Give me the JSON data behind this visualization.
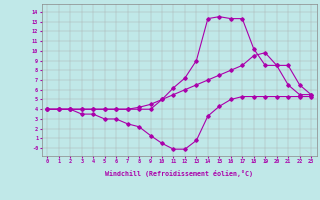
{
  "xlabel": "Windchill (Refroidissement éolien,°C)",
  "bg_color": "#c0e8e8",
  "line_color": "#aa00aa",
  "grid_color": "#aaaaaa",
  "xticks": [
    0,
    1,
    2,
    3,
    4,
    5,
    6,
    7,
    8,
    9,
    10,
    11,
    12,
    13,
    14,
    15,
    16,
    17,
    18,
    19,
    20,
    21,
    22,
    23
  ],
  "yticks": [
    0,
    1,
    2,
    3,
    4,
    5,
    6,
    7,
    8,
    9,
    10,
    11,
    12,
    13,
    14
  ],
  "line_top_x": [
    0,
    1,
    2,
    3,
    4,
    5,
    6,
    7,
    8,
    9,
    10,
    11,
    12,
    13,
    14,
    15,
    16,
    17,
    18,
    19,
    20,
    21,
    22,
    23
  ],
  "line_top_y": [
    4.0,
    4.0,
    4.0,
    4.0,
    4.0,
    4.0,
    4.0,
    4.0,
    4.0,
    4.0,
    5.0,
    6.2,
    7.2,
    9.0,
    13.3,
    13.5,
    13.3,
    13.3,
    10.2,
    8.5,
    8.5,
    6.5,
    5.5,
    5.5
  ],
  "line_mid_x": [
    0,
    1,
    2,
    3,
    4,
    5,
    6,
    7,
    8,
    9,
    10,
    11,
    12,
    13,
    14,
    15,
    16,
    17,
    18,
    19,
    20,
    21,
    22,
    23
  ],
  "line_mid_y": [
    4.0,
    4.0,
    4.0,
    4.0,
    4.0,
    4.0,
    4.0,
    4.0,
    4.2,
    4.5,
    5.0,
    5.5,
    6.0,
    6.5,
    7.0,
    7.5,
    8.0,
    8.5,
    9.5,
    9.8,
    8.5,
    8.5,
    6.5,
    5.5
  ],
  "line_bot_x": [
    0,
    1,
    2,
    3,
    4,
    5,
    6,
    7,
    8,
    9,
    10,
    11,
    12,
    13,
    14,
    15,
    16,
    17,
    18,
    19,
    20,
    21,
    22,
    23
  ],
  "line_bot_y": [
    4.0,
    4.0,
    4.0,
    3.5,
    3.5,
    3.0,
    3.0,
    2.5,
    2.2,
    1.3,
    0.5,
    -0.1,
    -0.1,
    0.8,
    3.3,
    4.3,
    5.0,
    5.3,
    5.3,
    5.3,
    5.3,
    5.3,
    5.3,
    5.3
  ]
}
